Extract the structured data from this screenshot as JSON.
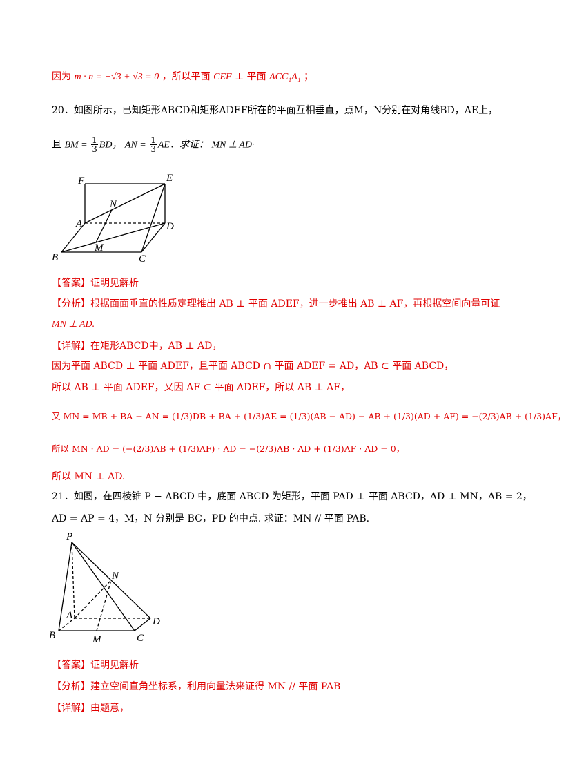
{
  "top_line": {
    "prefix": "因为",
    "math": "m · n = −√3 + √3 = 0",
    "mid": "，所以平面",
    "plane1": "CEF",
    "perp": "⊥",
    "plane_word": "平面",
    "plane2": "ACC₁A₁",
    "end": "；"
  },
  "q20": {
    "line1": "20．如图所示，已知矩形ABCD和矩形ADEF所在的平面互相垂直，点M，N分别在对角线BD，AE上，",
    "line2_pre": "且",
    "bm": "BM = ",
    "bm_num": "1",
    "bm_den": "3",
    "bm_post": "BD，",
    "an": "AN = ",
    "an_num": "1",
    "an_den": "3",
    "an_post": "AE．求证：",
    "goal": "MN ⊥ AD·",
    "labels": {
      "F": "F",
      "E": "E",
      "N": "N",
      "A": "A",
      "D": "D",
      "M": "M",
      "B": "B",
      "C": "C"
    },
    "answer_tag": "【答案】",
    "answer_text": "证明见解析",
    "analysis_tag": "【分析】",
    "analysis_text": "根据面面垂直的性质定理推出 AB ⊥ 平面 ADEF，进一步推出 AB ⊥ AF，再根据空间向量可证",
    "analysis_text2": "MN ⊥ AD.",
    "detail_tag": "【详解】",
    "detail_1": "在矩形ABCD中，AB ⊥ AD，",
    "detail_2": "因为平面 ABCD ⊥ 平面 ADEF，且平面 ABCD ∩ 平面 ADEF = AD，AB ⊂ 平面 ABCD，",
    "detail_3": "所以 AB ⊥ 平面 ADEF，又因 AF ⊂ 平面 ADEF，所以 AB ⊥ AF，",
    "detail_4": "又 MN = MB + BA + AN = (1/3)DB + BA + (1/3)AE = (1/3)(AB − AD) − AB + (1/3)(AD + AF) = −(2/3)AB + (1/3)AF，",
    "detail_5": "所以 MN · AD = (−(2/3)AB + (1/3)AF) · AD = −(2/3)AB · AD + (1/3)AF · AD = 0，",
    "detail_6": "所以 MN ⊥ AD."
  },
  "q21": {
    "line1": "21．如图，在四棱锥 P − ABCD 中，底面 ABCD 为矩形，平面 PAD ⊥ 平面 ABCD，AD ⊥ MN，AB = 2，",
    "line2": "AD = AP = 4，M，N 分别是 BC，PD 的中点. 求证：MN // 平面 PAB.",
    "labels": {
      "P": "P",
      "N": "N",
      "A": "A",
      "D": "D",
      "B": "B",
      "M": "M",
      "C": "C"
    },
    "answer_tag": "【答案】",
    "answer_text": "证明见解析",
    "analysis_tag": "【分析】",
    "analysis_text": "建立空间直角坐标系，利用向量法来证得 MN // 平面 PAB",
    "detail_tag": "【详解】",
    "detail_text": "由题意，"
  },
  "colors": {
    "accent_red": "#e00000",
    "text": "#000000"
  }
}
